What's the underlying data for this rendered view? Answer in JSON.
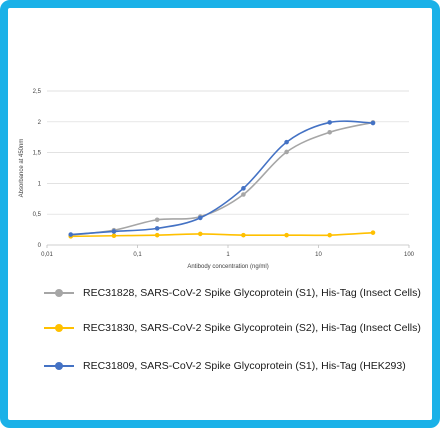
{
  "chart_data": {
    "type": "line",
    "xlabel": "Antibody concentration (ng/ml)",
    "ylabel": "Absorbance at 450nm",
    "x_scale": "log",
    "xlim": [
      0.01,
      100
    ],
    "ylim": [
      0,
      2.5
    ],
    "x_ticks": [
      "0,01",
      "0,1",
      "1",
      "10",
      "100"
    ],
    "y_ticks": [
      "0",
      "0,5",
      "1",
      "1,5",
      "2",
      "2,5"
    ],
    "grid": "horizontal",
    "legend_position": "bottom",
    "x": [
      0.0183,
      0.0549,
      0.165,
      0.494,
      1.48,
      4.44,
      13.3,
      40
    ],
    "series": [
      {
        "name": "REC31828, SARS-CoV-2 Spike Glycoprotein (S1), His-Tag (Insect Cells)",
        "color": "#a6a6a6",
        "values": [
          0.16,
          0.24,
          0.41,
          0.46,
          0.82,
          1.51,
          1.83,
          1.99
        ]
      },
      {
        "name": "REC31830, SARS-CoV-2 Spike Glycoprotein (S2), His-Tag (Insect Cells)",
        "color": "#ffc000",
        "values": [
          0.14,
          0.15,
          0.16,
          0.18,
          0.16,
          0.16,
          0.16,
          0.2
        ]
      },
      {
        "name": "REC31809, SARS-CoV-2 Spike Glycoprotein (S1), His-Tag (HEK293)",
        "color": "#4472c4",
        "values": [
          0.17,
          0.22,
          0.27,
          0.44,
          0.92,
          1.67,
          1.99,
          1.98
        ]
      }
    ]
  }
}
